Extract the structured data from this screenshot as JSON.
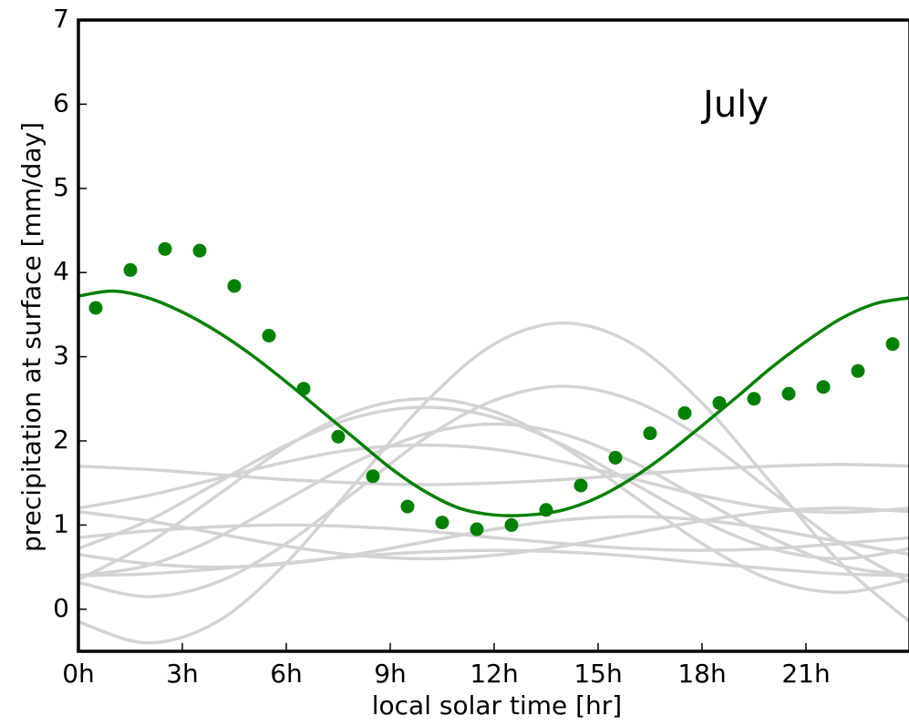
{
  "chart_data": {
    "type": "line",
    "annotation": "July",
    "xlabel": "local solar time [hr]",
    "ylabel": "precipitation at surface [mm/day]",
    "xlim": [
      0,
      24
    ],
    "ylim": [
      -0.5,
      7
    ],
    "xticks": [
      {
        "value": 0,
        "label": "0h"
      },
      {
        "value": 3,
        "label": "3h"
      },
      {
        "value": 6,
        "label": "6h"
      },
      {
        "value": 9,
        "label": "9h"
      },
      {
        "value": 12,
        "label": "12h"
      },
      {
        "value": 15,
        "label": "15h"
      },
      {
        "value": 18,
        "label": "18h"
      },
      {
        "value": 21,
        "label": "21h"
      }
    ],
    "yticks": [
      0,
      1,
      2,
      3,
      4,
      5,
      6,
      7
    ],
    "grid": false,
    "series": [
      {
        "color": "#d3d3d3",
        "style": "line",
        "x": [
          0,
          2,
          4,
          6,
          8,
          10,
          12,
          14,
          16,
          18,
          20,
          22,
          24
        ],
        "values": [
          -0.15,
          -0.4,
          -0.15,
          0.55,
          1.5,
          2.45,
          3.15,
          3.4,
          3.15,
          2.45,
          1.5,
          0.55,
          -0.15
        ]
      },
      {
        "color": "#d3d3d3",
        "style": "line",
        "x": [
          0,
          2,
          4,
          6,
          8,
          10,
          12,
          14,
          16,
          18,
          20,
          22,
          24
        ],
        "values": [
          0.32,
          0.15,
          0.32,
          0.78,
          1.4,
          2.03,
          2.48,
          2.65,
          2.48,
          2.03,
          1.4,
          0.78,
          0.32
        ]
      },
      {
        "color": "#d3d3d3",
        "style": "line",
        "x": [
          0,
          2,
          4,
          6,
          8,
          10,
          12,
          14,
          16,
          18,
          20,
          22,
          24
        ],
        "values": [
          0.35,
          0.78,
          1.35,
          1.93,
          2.35,
          2.5,
          2.35,
          1.93,
          1.35,
          0.78,
          0.35,
          0.2,
          0.35
        ]
      },
      {
        "color": "#d3d3d3",
        "style": "line",
        "x": [
          0,
          2,
          4,
          6,
          8,
          10,
          12,
          14,
          16,
          18,
          20,
          22,
          24
        ],
        "values": [
          0.72,
          1.05,
          1.5,
          1.95,
          2.28,
          2.4,
          2.28,
          1.95,
          1.5,
          1.05,
          0.72,
          0.6,
          0.72
        ]
      },
      {
        "color": "#d3d3d3",
        "style": "line",
        "x": [
          0,
          2,
          4,
          6,
          8,
          10,
          12,
          14,
          16,
          18,
          20,
          22,
          24
        ],
        "values": [
          0.4,
          0.52,
          0.85,
          1.3,
          1.75,
          2.08,
          2.2,
          2.08,
          1.75,
          1.3,
          0.85,
          0.52,
          0.4
        ]
      },
      {
        "color": "#d3d3d3",
        "style": "line",
        "x": [
          0,
          2,
          4,
          6,
          8,
          10,
          12,
          14,
          16,
          18,
          20,
          22,
          24
        ],
        "values": [
          1.7,
          1.66,
          1.6,
          1.54,
          1.5,
          1.48,
          1.5,
          1.54,
          1.6,
          1.66,
          1.7,
          1.72,
          1.7
        ]
      },
      {
        "color": "#d3d3d3",
        "style": "line",
        "x": [
          0,
          2,
          4,
          6,
          8,
          10,
          12,
          14,
          16,
          18,
          20,
          22,
          24
        ],
        "values": [
          1.2,
          1.35,
          1.55,
          1.75,
          1.9,
          1.95,
          1.9,
          1.75,
          1.55,
          1.35,
          1.2,
          1.15,
          1.2
        ]
      },
      {
        "color": "#d3d3d3",
        "style": "line",
        "x": [
          0,
          2,
          4,
          6,
          8,
          10,
          12,
          14,
          16,
          18,
          20,
          22,
          24
        ],
        "values": [
          0.85,
          0.93,
          0.98,
          1.0,
          0.98,
          0.93,
          0.85,
          0.78,
          0.72,
          0.7,
          0.72,
          0.78,
          0.85
        ]
      },
      {
        "color": "#d3d3d3",
        "style": "line",
        "x": [
          0,
          2,
          4,
          6,
          8,
          10,
          12,
          14,
          16,
          18,
          20,
          22,
          24
        ],
        "values": [
          0.4,
          0.42,
          0.48,
          0.55,
          0.63,
          0.68,
          0.7,
          0.68,
          0.63,
          0.55,
          0.48,
          0.42,
          0.4
        ]
      },
      {
        "color": "#d3d3d3",
        "style": "line",
        "x": [
          0,
          2,
          4,
          6,
          8,
          10,
          12,
          14,
          16,
          18,
          20,
          22,
          24
        ],
        "values": [
          1.16,
          1.05,
          0.9,
          0.75,
          0.64,
          0.6,
          0.64,
          0.75,
          0.9,
          1.05,
          1.16,
          1.2,
          1.16
        ]
      },
      {
        "color": "#d3d3d3",
        "style": "line",
        "x": [
          0,
          2,
          4,
          6,
          8,
          10,
          12,
          14,
          16,
          18,
          20,
          22,
          24
        ],
        "values": [
          0.65,
          0.54,
          0.5,
          0.54,
          0.65,
          0.8,
          0.95,
          1.06,
          1.1,
          1.06,
          0.95,
          0.8,
          0.65
        ]
      },
      {
        "color": "#008000",
        "style": "line",
        "x": [
          0,
          1,
          2,
          3,
          4,
          5,
          6,
          7,
          8,
          9,
          10,
          11,
          12,
          13,
          14,
          15,
          16,
          17,
          18,
          19,
          20,
          21,
          22,
          23,
          24
        ],
        "values": [
          3.72,
          3.78,
          3.7,
          3.53,
          3.3,
          3.02,
          2.7,
          2.36,
          2.02,
          1.68,
          1.4,
          1.2,
          1.12,
          1.12,
          1.18,
          1.33,
          1.56,
          1.85,
          2.18,
          2.52,
          2.87,
          3.18,
          3.45,
          3.63,
          3.7
        ]
      },
      {
        "color": "#008000",
        "style": "markers",
        "x": [
          0.5,
          1.5,
          2.5,
          3.5,
          4.5,
          5.5,
          6.5,
          7.5,
          8.5,
          9.5,
          10.5,
          11.5,
          12.5,
          13.5,
          14.5,
          15.5,
          16.5,
          17.5,
          18.5,
          19.5,
          20.5,
          21.5,
          22.5,
          23.5
        ],
        "values": [
          3.58,
          4.03,
          4.28,
          4.26,
          3.84,
          3.25,
          2.62,
          2.05,
          1.58,
          1.22,
          1.03,
          0.95,
          1.0,
          1.18,
          1.47,
          1.8,
          2.09,
          2.33,
          2.45,
          2.5,
          2.56,
          2.64,
          2.83,
          3.15
        ]
      }
    ]
  }
}
